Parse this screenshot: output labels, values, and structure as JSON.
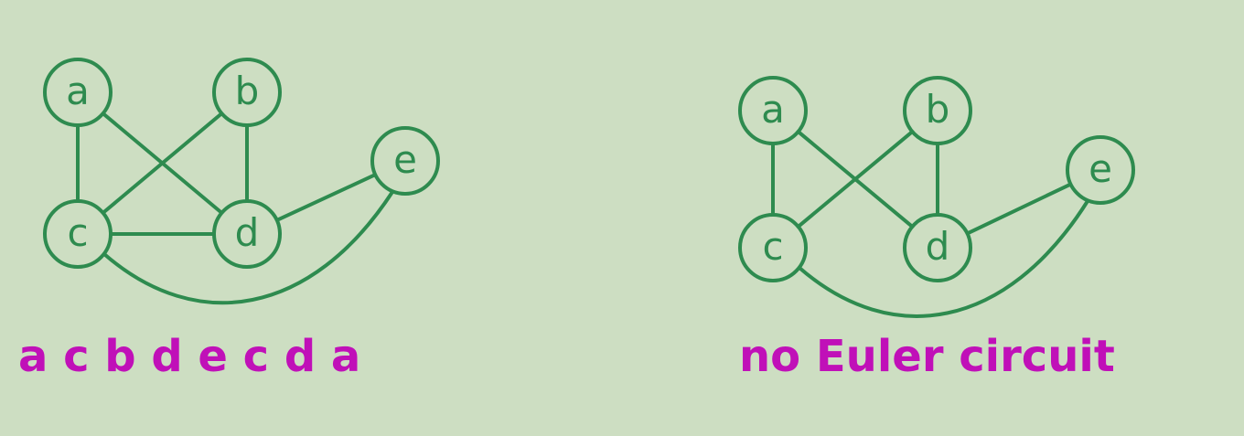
{
  "colors": {
    "background": "#cddec2",
    "graph": "#2e8b4f",
    "caption": "#c010b8"
  },
  "graphs": [
    {
      "nodes": [
        {
          "id": "a",
          "label": "a"
        },
        {
          "id": "b",
          "label": "b"
        },
        {
          "id": "c",
          "label": "c"
        },
        {
          "id": "d",
          "label": "d"
        },
        {
          "id": "e",
          "label": "e"
        }
      ],
      "edges": [
        [
          "a",
          "c"
        ],
        [
          "a",
          "d"
        ],
        [
          "b",
          "c"
        ],
        [
          "b",
          "d"
        ],
        [
          "c",
          "d"
        ],
        [
          "d",
          "e"
        ],
        [
          "c",
          "e"
        ]
      ],
      "caption": "a c b d e c d a"
    },
    {
      "nodes": [
        {
          "id": "a",
          "label": "a"
        },
        {
          "id": "b",
          "label": "b"
        },
        {
          "id": "c",
          "label": "c"
        },
        {
          "id": "d",
          "label": "d"
        },
        {
          "id": "e",
          "label": "e"
        }
      ],
      "edges": [
        [
          "a",
          "c"
        ],
        [
          "a",
          "d"
        ],
        [
          "b",
          "c"
        ],
        [
          "b",
          "d"
        ],
        [
          "d",
          "e"
        ],
        [
          "c",
          "e"
        ]
      ],
      "caption": "no Euler circuit"
    }
  ]
}
